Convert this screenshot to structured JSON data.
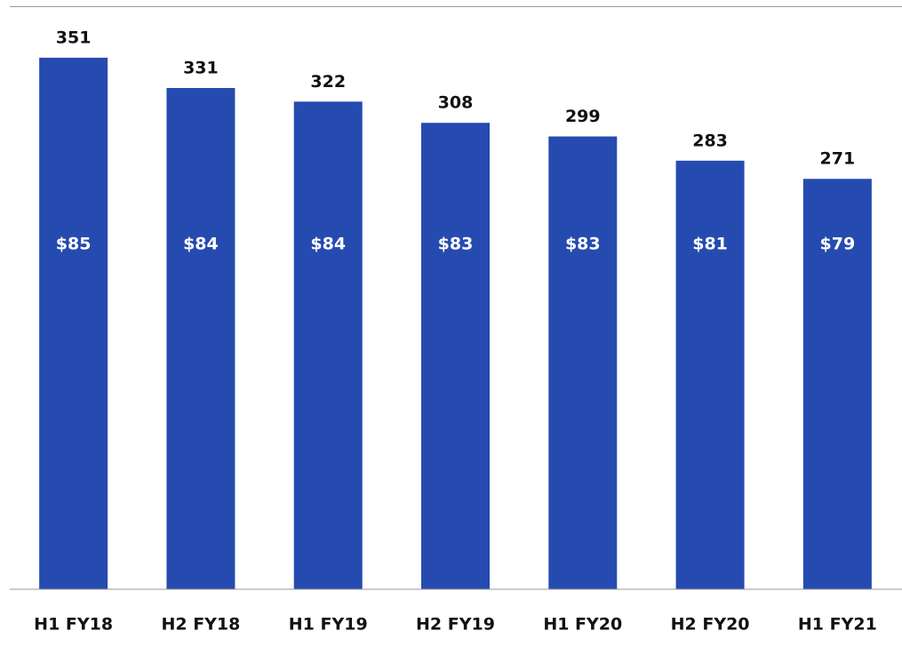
{
  "chart_data": {
    "type": "bar",
    "categories": [
      "H1 FY18",
      "H2 FY18",
      "H1 FY19",
      "H2 FY19",
      "H1 FY20",
      "H2 FY20",
      "H1 FY21"
    ],
    "values": [
      351,
      331,
      322,
      308,
      299,
      283,
      271
    ],
    "inner_labels": [
      "$85",
      "$84",
      "$84",
      "$83",
      "$83",
      "$81",
      "$79"
    ],
    "color": "#264bb0",
    "ylim": [
      0,
      385
    ]
  }
}
